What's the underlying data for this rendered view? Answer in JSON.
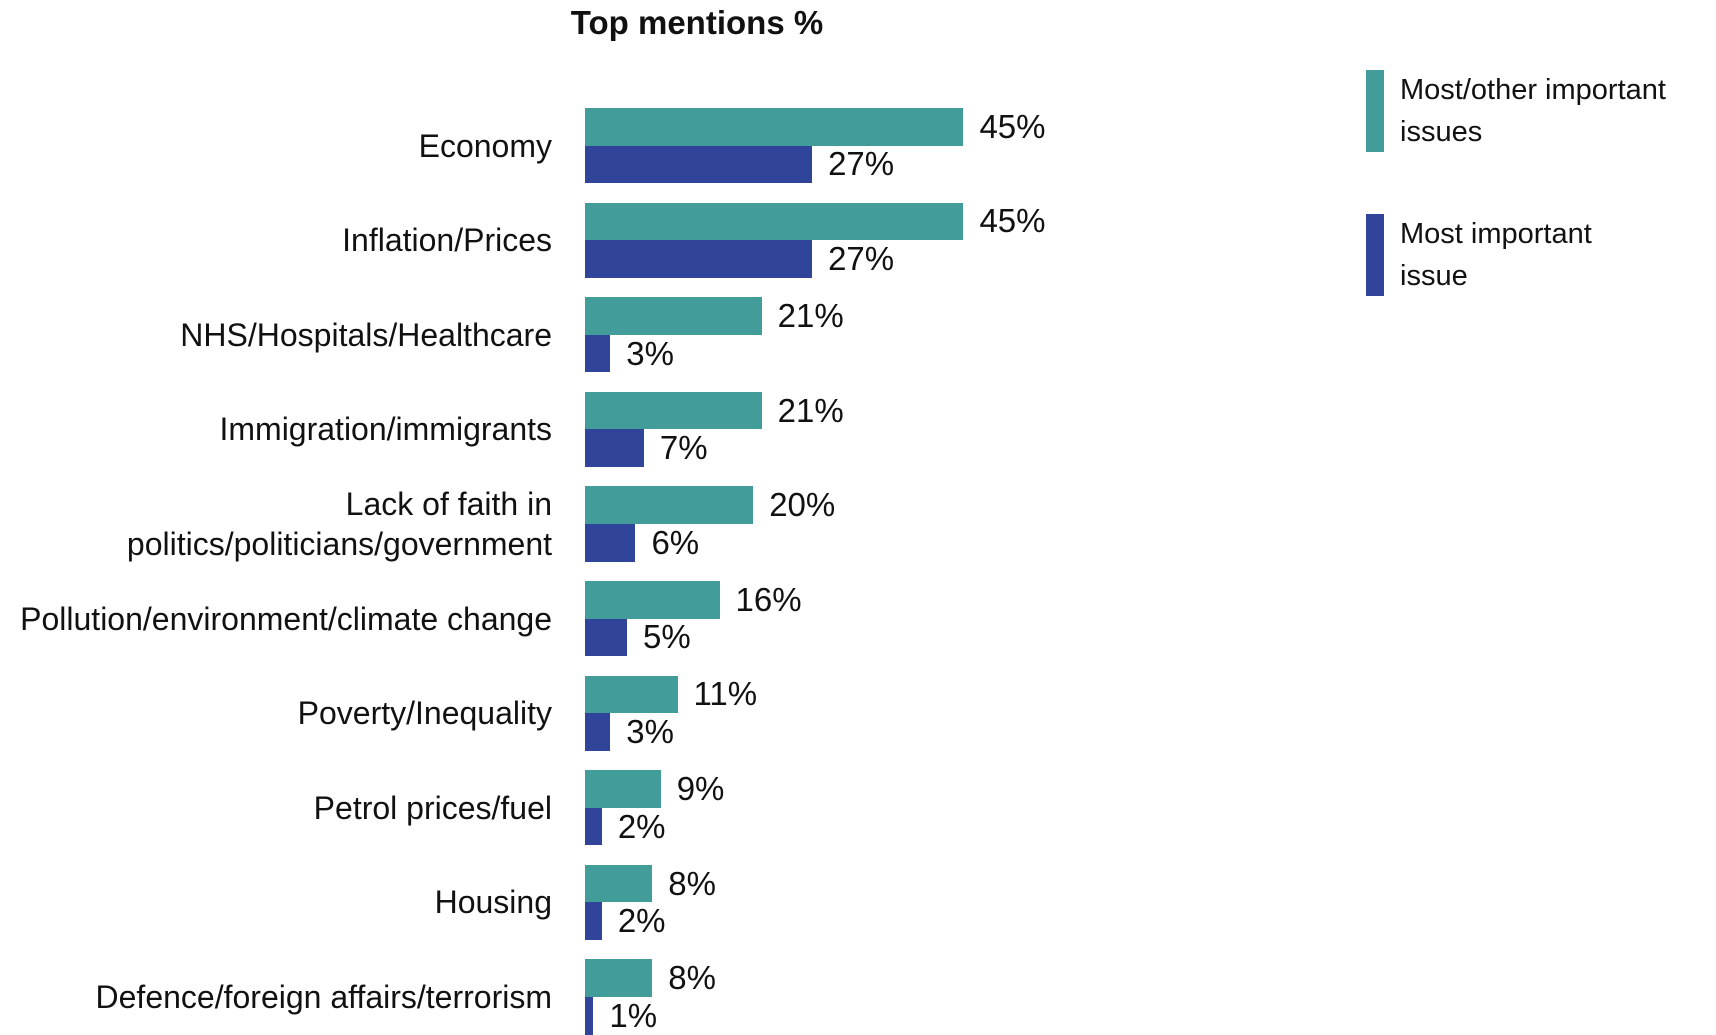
{
  "chart_data": {
    "type": "bar",
    "orientation": "horizontal",
    "title": "Top mentions %",
    "categories": [
      "Economy",
      "Inflation/Prices",
      "NHS/Hospitals/Healthcare",
      "Immigration/immigrants",
      "Lack of faith in politics/politicians/government",
      "Pollution/environment/climate change",
      "Poverty/Inequality",
      "Petrol prices/fuel",
      "Housing",
      "Defence/foreign affairs/terrorism"
    ],
    "series": [
      {
        "name": "Most/other important issues",
        "color": "#429c9a",
        "values": [
          45,
          45,
          21,
          21,
          20,
          16,
          11,
          9,
          8,
          8
        ],
        "value_labels": [
          "45%",
          "45%",
          "21%",
          "21%",
          "20%",
          "16%",
          "11%",
          "9%",
          "8%",
          "8%"
        ]
      },
      {
        "name": "Most important issue",
        "color": "#30449a",
        "values": [
          27,
          27,
          3,
          7,
          6,
          5,
          3,
          2,
          2,
          1
        ],
        "value_labels": [
          "27%",
          "27%",
          "3%",
          "7%",
          "6%",
          "5%",
          "3%",
          "2%",
          "2%",
          "1%"
        ]
      }
    ],
    "legend": "top-right"
  }
}
